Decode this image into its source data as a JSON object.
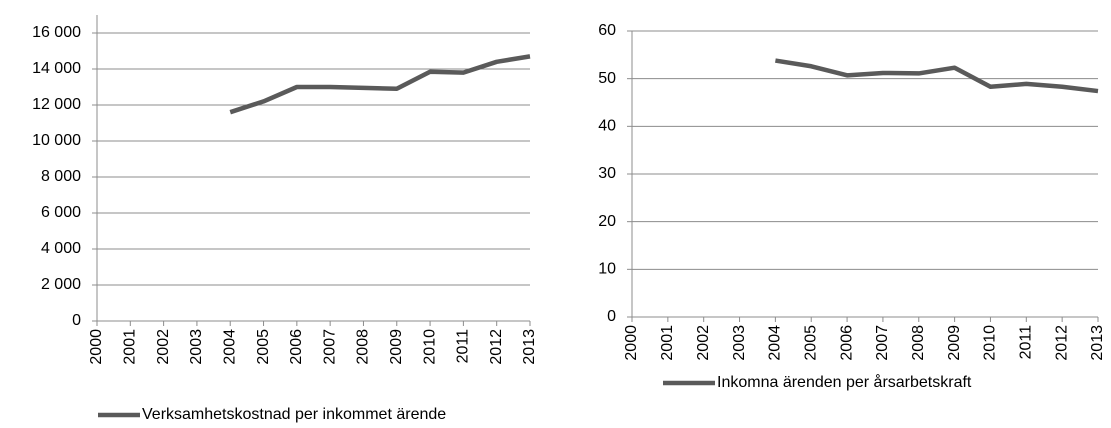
{
  "chart_data": [
    {
      "type": "line",
      "categories": [
        "2000",
        "2001",
        "2002",
        "2003",
        "2004",
        "2005",
        "2006",
        "2007",
        "2008",
        "2009",
        "2010",
        "2011",
        "2012",
        "2013"
      ],
      "series": [
        {
          "name": "Verksamhetskostnad per inkommet ärende",
          "color": "#5a5a5a",
          "values": [
            null,
            null,
            null,
            null,
            11600,
            12200,
            13000,
            13000,
            12950,
            12900,
            13850,
            13800,
            14400,
            14700
          ]
        }
      ],
      "ylim": [
        0,
        16000
      ],
      "yticks": [
        0,
        {
          "value": 2000,
          "label": "2 000"
        },
        {
          "value": 4000,
          "label": "4 000"
        },
        {
          "value": 6000,
          "label": "6 000"
        },
        {
          "value": 8000,
          "label": "8 000"
        },
        {
          "value": 10000,
          "label": "10 000"
        },
        {
          "value": 12000,
          "label": "12 000"
        },
        {
          "value": 14000,
          "label": "14 000"
        },
        {
          "value": 16000,
          "label": "16 000"
        }
      ],
      "grid": true,
      "legend": "bottom"
    },
    {
      "type": "line",
      "categories": [
        "2000",
        "2001",
        "2002",
        "2003",
        "2004",
        "2005",
        "2006",
        "2007",
        "2008",
        "2009",
        "2010",
        "2011",
        "2012",
        "2013"
      ],
      "series": [
        {
          "name": "Inkomna ärenden per årsarbetskraft",
          "color": "#5a5a5a",
          "values": [
            null,
            null,
            null,
            null,
            53.8,
            52.6,
            50.7,
            51.2,
            51.1,
            52.3,
            48.3,
            48.9,
            48.3,
            47.4
          ]
        }
      ],
      "ylim": [
        0,
        60
      ],
      "yticks": [
        0,
        10,
        20,
        30,
        40,
        50,
        60
      ],
      "grid": true,
      "legend": "bottom"
    }
  ]
}
